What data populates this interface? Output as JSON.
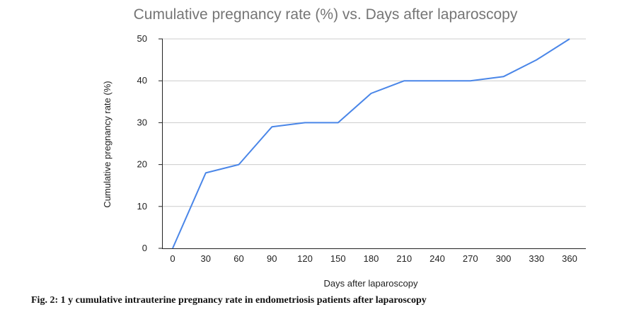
{
  "chart_data": {
    "type": "line",
    "title": "Cumulative pregnancy rate (%) vs. Days after laparoscopy",
    "xlabel": "Days after laparoscopy",
    "ylabel": "Cumulative pregnancy rate (%)",
    "x": [
      0,
      30,
      60,
      90,
      120,
      150,
      180,
      210,
      240,
      270,
      300,
      330,
      360
    ],
    "values": [
      0,
      18,
      20,
      29,
      30,
      30,
      37,
      40,
      40,
      40,
      41,
      45,
      50
    ],
    "xlim": [
      0,
      360
    ],
    "ylim": [
      0,
      50
    ],
    "yticks": [
      0,
      10,
      20,
      30,
      40,
      50
    ],
    "xticks": [
      0,
      30,
      60,
      90,
      120,
      150,
      180,
      210,
      240,
      270,
      300,
      330,
      360
    ],
    "grid": true,
    "line_color": "#4a86e8",
    "grid_color": "#cccccc",
    "axis_color": "#222222"
  },
  "caption": "Fig. 2: 1 y cumulative intrauterine pregnancy rate in endometriosis patients after laparoscopy"
}
